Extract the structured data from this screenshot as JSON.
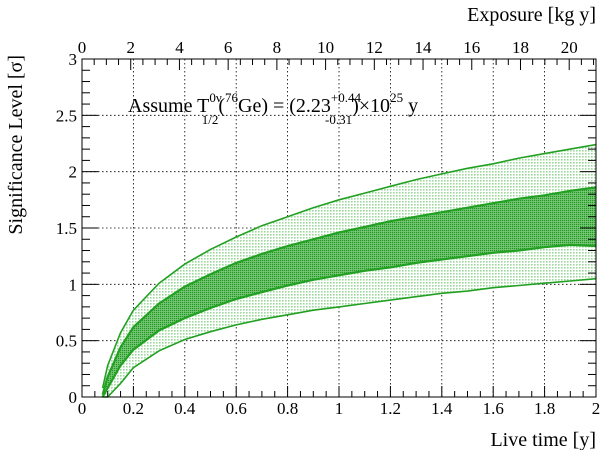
{
  "chart_data": {
    "type": "area",
    "xlabel": "Live time [y]",
    "x2label": "Exposure [kg y]",
    "ylabel": "Significance Level [σ]",
    "xlim": [
      0,
      2
    ],
    "x2lim": [
      0,
      21.1
    ],
    "ylim": [
      0,
      3
    ],
    "grid": true,
    "x_ticks": [
      "0",
      "0.2",
      "0.4",
      "0.6",
      "0.8",
      "1",
      "1.2",
      "1.4",
      "1.6",
      "1.8",
      "2"
    ],
    "x2_ticks": [
      "0",
      "2",
      "4",
      "6",
      "8",
      "10",
      "12",
      "14",
      "16",
      "18",
      "20"
    ],
    "y_ticks": [
      "0",
      "0.5",
      "1",
      "1.5",
      "2",
      "2.5",
      "3"
    ],
    "annotation": {
      "prefix": "Assume T",
      "sup_nu": "0ν",
      "sub_half": "1/2",
      "open": "(",
      "sup_mass": "76",
      "element": "Ge) = (2.23",
      "sup_err": "+0.44",
      "sub_err": "-0.31",
      "times": ")×10",
      "sup_exp": "25",
      "unit": " y"
    },
    "x": [
      0.08,
      0.1,
      0.15,
      0.2,
      0.3,
      0.4,
      0.5,
      0.6,
      0.7,
      0.8,
      0.9,
      1.0,
      1.1,
      1.2,
      1.3,
      1.4,
      1.5,
      1.6,
      1.7,
      1.8,
      1.9,
      2.0
    ],
    "series": [
      {
        "role": "outer-upper",
        "values": [
          0.08,
          0.28,
          0.57,
          0.77,
          1.01,
          1.18,
          1.31,
          1.42,
          1.52,
          1.6,
          1.68,
          1.75,
          1.81,
          1.87,
          1.93,
          1.98,
          2.03,
          2.07,
          2.12,
          2.16,
          2.2,
          2.24
        ]
      },
      {
        "role": "inner-upper",
        "values": [
          0.02,
          0.18,
          0.44,
          0.62,
          0.83,
          0.98,
          1.09,
          1.19,
          1.27,
          1.34,
          1.4,
          1.46,
          1.51,
          1.56,
          1.6,
          1.64,
          1.68,
          1.72,
          1.76,
          1.79,
          1.83,
          1.86
        ]
      },
      {
        "role": "inner-lower",
        "values": [
          0.0,
          0.08,
          0.28,
          0.42,
          0.59,
          0.7,
          0.79,
          0.87,
          0.93,
          0.99,
          1.04,
          1.08,
          1.12,
          1.15,
          1.19,
          1.22,
          1.25,
          1.28,
          1.3,
          1.33,
          1.35,
          1.34
        ]
      },
      {
        "role": "outer-lower",
        "values": [
          0.0,
          0.0,
          0.12,
          0.26,
          0.41,
          0.51,
          0.58,
          0.64,
          0.69,
          0.73,
          0.77,
          0.8,
          0.83,
          0.86,
          0.89,
          0.92,
          0.94,
          0.97,
          0.99,
          1.01,
          1.03,
          1.05
        ]
      }
    ],
    "colors": {
      "line": "#22a022",
      "outer_fill": "#9ed89e",
      "inner_fill": "#1f9a1f"
    }
  }
}
